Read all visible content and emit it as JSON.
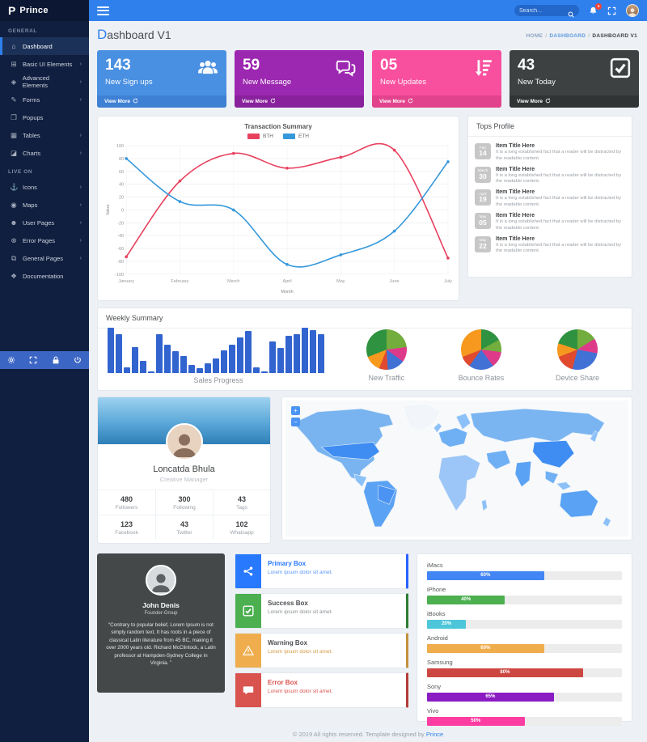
{
  "sidebar": {
    "logo": "Prince",
    "sections": [
      {
        "label": "GENERAL",
        "items": [
          {
            "label": "Dashboard",
            "icon": "home-icon",
            "active": true,
            "arrow": false
          },
          {
            "label": "Basic UI Elements",
            "icon": "ui-elements-icon",
            "active": false,
            "arrow": true
          },
          {
            "label": "Advanced Elements",
            "icon": "advanced-elements-icon",
            "active": false,
            "arrow": true
          },
          {
            "label": "Forms",
            "icon": "forms-icon",
            "active": false,
            "arrow": true
          },
          {
            "label": "Popups",
            "icon": "popups-icon",
            "active": false,
            "arrow": false
          },
          {
            "label": "Tables",
            "icon": "tables-icon",
            "active": false,
            "arrow": true
          },
          {
            "label": "Charts",
            "icon": "charts-icon",
            "active": false,
            "arrow": true
          }
        ]
      },
      {
        "label": "LIVE ON",
        "items": [
          {
            "label": "Icons",
            "icon": "icons-icon",
            "active": false,
            "arrow": true
          },
          {
            "label": "Maps",
            "icon": "maps-icon",
            "active": false,
            "arrow": true
          },
          {
            "label": "User Pages",
            "icon": "user-pages-icon",
            "active": false,
            "arrow": true
          },
          {
            "label": "Error Pages",
            "icon": "error-pages-icon",
            "active": false,
            "arrow": true
          },
          {
            "label": "General Pages",
            "icon": "general-pages-icon",
            "active": false,
            "arrow": true
          },
          {
            "label": "Documentation",
            "icon": "documentation-icon",
            "active": false,
            "arrow": false
          }
        ]
      }
    ],
    "quick_icons": [
      "gear-icon",
      "expand-icon",
      "lock-icon",
      "power-icon"
    ]
  },
  "topbar": {
    "search_placeholder": "Search...",
    "notification_count": "4"
  },
  "page": {
    "title_first": "D",
    "title_rest": "ashboard V1",
    "breadcrumb": [
      "HOME",
      "DASHBOARD",
      "DASHBOARD V1"
    ]
  },
  "stat_cards": [
    {
      "value": "143",
      "label": "New Sign ups",
      "action": "View More",
      "icon": "users-icon",
      "bg": "#4a90e2",
      "footer_bg": "#3e80d4"
    },
    {
      "value": "59",
      "label": "New Message",
      "action": "View More",
      "icon": "comments-icon",
      "bg": "#9c27b0",
      "footer_bg": "#88219b"
    },
    {
      "value": "05",
      "label": "New Updates",
      "action": "View More",
      "icon": "sort-amount-icon",
      "bg": "#f8509f",
      "footer_bg": "#e2438d"
    },
    {
      "value": "43",
      "label": "New Today",
      "action": "View More",
      "icon": "check-square-icon",
      "bg": "#3e4142",
      "footer_bg": "#313435"
    }
  ],
  "chart_data": [
    {
      "id": "transaction",
      "type": "line",
      "title": "Transaction Summary",
      "x": [
        "January",
        "February",
        "March",
        "April",
        "May",
        "June",
        "July"
      ],
      "series": [
        {
          "name": "BTH",
          "color": "#e8415f",
          "values": [
            -73,
            45,
            88,
            65,
            82,
            93,
            -75
          ]
        },
        {
          "name": "ETH",
          "color": "#3598db",
          "values": [
            80,
            13,
            0,
            -85,
            -70,
            -33,
            75
          ]
        }
      ],
      "xlabel": "Month",
      "ylabel": "Value",
      "ylim": [
        -100,
        100
      ],
      "ytick_step": 20,
      "grid": true,
      "legend_position": "top"
    },
    {
      "id": "sales",
      "type": "bar",
      "title": "Sales Progress",
      "color": "#3264cf",
      "values": [
        100,
        86,
        12,
        58,
        26,
        3,
        85,
        62,
        48,
        38,
        18,
        10,
        22,
        32,
        50,
        62,
        78,
        92,
        12,
        3,
        70,
        55,
        82,
        86,
        100,
        94,
        85
      ],
      "ylim": [
        0,
        100
      ]
    },
    {
      "id": "traffic",
      "type": "pie",
      "title": "New Traffic",
      "slices": [
        {
          "color": "#72ad3d",
          "value": 23
        },
        {
          "color": "#dd3b8a",
          "value": 12
        },
        {
          "color": "#4271d6",
          "value": 14
        },
        {
          "color": "#e04a2f",
          "value": 7
        },
        {
          "color": "#f6991e",
          "value": 13
        },
        {
          "color": "#2f9240",
          "value": 31
        }
      ]
    },
    {
      "id": "bounce",
      "type": "pie",
      "title": "Bounce Rates",
      "slices": [
        {
          "color": "#2f9240",
          "value": 17
        },
        {
          "color": "#72ad3d",
          "value": 10
        },
        {
          "color": "#dd3b8a",
          "value": 13
        },
        {
          "color": "#4271d6",
          "value": 20
        },
        {
          "color": "#e04a2f",
          "value": 9
        },
        {
          "color": "#f6991e",
          "value": 31
        }
      ]
    },
    {
      "id": "device",
      "type": "pie",
      "title": "Device Share",
      "slices": [
        {
          "color": "#72ad3d",
          "value": 16
        },
        {
          "color": "#dd3b8a",
          "value": 12
        },
        {
          "color": "#4271d6",
          "value": 26
        },
        {
          "color": "#e04a2f",
          "value": 15
        },
        {
          "color": "#f6991e",
          "value": 11
        },
        {
          "color": "#2f9240",
          "value": 20
        }
      ]
    },
    {
      "id": "devices_progress",
      "type": "bar",
      "orientation": "horizontal",
      "unit": "%",
      "categories": [
        "iMacs",
        "iPhone",
        "iBooks",
        "Android",
        "Samsung",
        "Sony",
        "Vivo"
      ],
      "values": [
        60,
        40,
        20,
        60,
        80,
        65,
        50
      ],
      "colors": [
        "#4285f4",
        "#4caf50",
        "#4ec6da",
        "#efad4d",
        "#cd4742",
        "#8a1cc2",
        "#fd3da2"
      ],
      "xlim": [
        0,
        100
      ]
    }
  ],
  "weekly_summary": {
    "title": "Weekly Summary"
  },
  "tops_profile": {
    "title": "Tops Profile",
    "items": [
      {
        "month": "Feb",
        "day": "14",
        "title": "Item Title Here",
        "text": "It is a long established fact that a reader will be distracted by the readable content."
      },
      {
        "month": "March",
        "day": "30",
        "title": "Item Title Here",
        "text": "It is a long established fact that a reader will be distracted by the readable content."
      },
      {
        "month": "April",
        "day": "19",
        "title": "Item Title Here",
        "text": "It is a long established fact that a reader will be distracted by the readable content."
      },
      {
        "month": "May",
        "day": "05",
        "title": "Item Title Here",
        "text": "It is a long established fact that a reader will be distracted by the readable content."
      },
      {
        "month": "May",
        "day": "22",
        "title": "Item Title Here",
        "text": "It is a long established fact that a reader will be distracted by the readable content."
      }
    ]
  },
  "profile_card": {
    "name": "Loncatda Bhula",
    "role": "Creative Manager",
    "stats": [
      {
        "value": "480",
        "label": "Followers"
      },
      {
        "value": "300",
        "label": "Following"
      },
      {
        "value": "43",
        "label": "Tags"
      },
      {
        "value": "123",
        "label": "Facebook"
      },
      {
        "value": "43",
        "label": "Twitter"
      },
      {
        "value": "102",
        "label": "Whatsapp"
      }
    ]
  },
  "map_card": {
    "zoom_in": "+",
    "zoom_out": "−"
  },
  "quote_card": {
    "name": "John Denis",
    "role": "Founder-Group",
    "quote": "“Contrary to popular belief, Lorem Ipsum is not simply random text. It has roots in a piece of classical Latin literature from 45 BC, making it over 2000 years old. Richard McClintock, a Latin professor at Hampden-Sydney College in Virginia. ”"
  },
  "boxes": [
    {
      "title": "Primary Box",
      "text": "Lorem ipsum dolor sit amet.",
      "icon": "share-icon",
      "accent": "#2979ff",
      "edge": "#2962ff",
      "title_color": "#2979ff",
      "text_color": "#5b96f7"
    },
    {
      "title": "Success Box",
      "text": "Lorem ipsum dolor sit amet.",
      "icon": "check-square-icon",
      "accent": "#4caf50",
      "edge": "#2e7d32",
      "title_color": "#4b4f52",
      "text_color": "#8a8f93"
    },
    {
      "title": "Warning Box",
      "text": "Lorem ipsum dolor sit amet.",
      "icon": "warning-icon",
      "accent": "#efad4d",
      "edge": "#c5913f",
      "title_color": "#4b4f52",
      "text_color": "#d29a45"
    },
    {
      "title": "Error Box",
      "text": "Lorem ipsum dolor sit amet.",
      "icon": "comment-icon",
      "accent": "#d9534f",
      "edge": "#b23c38",
      "title_color": "#d9534f",
      "text_color": "#d9534f"
    }
  ],
  "footer": {
    "text": "© 2019 All rights reserved. Template designed by ",
    "link": "Prince"
  }
}
